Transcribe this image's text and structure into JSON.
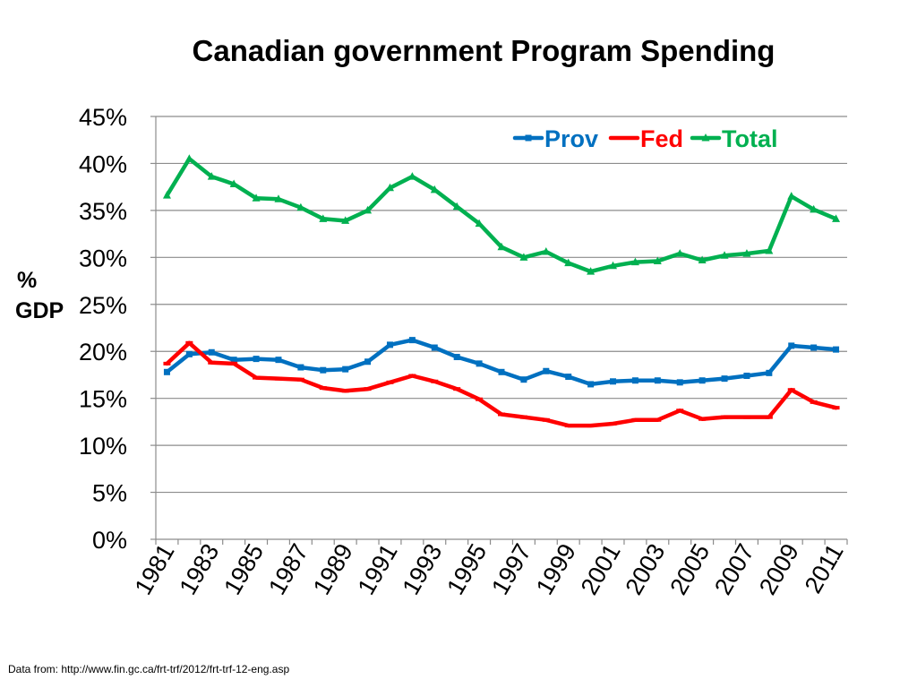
{
  "slide": {
    "source": "Data from: http://www.fin.gc.ca/frt-trf/2012/frt-trf-12-eng.asp"
  },
  "chart_data": {
    "type": "line",
    "title": "Canadian government Program Spending",
    "xlabel": "",
    "ylabel": [
      "%",
      "GDP"
    ],
    "x": [
      1981,
      1982,
      1983,
      1984,
      1985,
      1986,
      1987,
      1988,
      1989,
      1990,
      1991,
      1992,
      1993,
      1994,
      1995,
      1996,
      1997,
      1998,
      1999,
      2000,
      2001,
      2002,
      2003,
      2004,
      2005,
      2006,
      2007,
      2008,
      2009,
      2010,
      2011
    ],
    "xtick_labels": [
      "1981",
      "1983",
      "1985",
      "1987",
      "1989",
      "1991",
      "1993",
      "1995",
      "1997",
      "1999",
      "2001",
      "2003",
      "2005",
      "2007",
      "2009",
      "2011"
    ],
    "ylim": [
      0,
      45
    ],
    "yticks": [
      0,
      5,
      10,
      15,
      20,
      25,
      30,
      35,
      40,
      45
    ],
    "ytick_labels": [
      "0%",
      "5%",
      "10%",
      "15%",
      "20%",
      "25%",
      "30%",
      "35%",
      "40%",
      "45%"
    ],
    "grid": true,
    "legend_position": "top-right",
    "series": [
      {
        "name": "Prov",
        "color": "#0070C0",
        "marker": "square",
        "values": [
          17.8,
          19.7,
          19.9,
          19.1,
          19.2,
          19.1,
          18.3,
          18.0,
          18.1,
          18.9,
          20.7,
          21.2,
          20.4,
          19.4,
          18.7,
          17.8,
          17.0,
          17.9,
          17.3,
          16.5,
          16.8,
          16.9,
          16.9,
          16.7,
          16.9,
          17.1,
          17.4,
          17.7,
          20.6,
          20.4,
          20.2
        ]
      },
      {
        "name": "Fed",
        "color": "#FF0000",
        "marker": "dash",
        "values": [
          18.7,
          20.9,
          18.8,
          18.7,
          17.2,
          17.1,
          17.0,
          16.1,
          15.8,
          16.0,
          16.7,
          17.4,
          16.8,
          16.0,
          14.9,
          13.3,
          13.0,
          12.7,
          12.1,
          12.1,
          12.3,
          12.7,
          12.7,
          13.7,
          12.8,
          13.0,
          13.0,
          13.0,
          15.9,
          14.6,
          14.0
        ]
      },
      {
        "name": "Total",
        "color": "#00B050",
        "marker": "triangle",
        "values": [
          36.6,
          40.5,
          38.6,
          37.8,
          36.3,
          36.2,
          35.3,
          34.1,
          33.9,
          35.0,
          37.4,
          38.6,
          37.2,
          35.4,
          33.6,
          31.1,
          30.0,
          30.6,
          29.4,
          28.5,
          29.1,
          29.5,
          29.6,
          30.4,
          29.7,
          30.2,
          30.4,
          30.7,
          36.5,
          35.1,
          34.1
        ]
      }
    ]
  }
}
